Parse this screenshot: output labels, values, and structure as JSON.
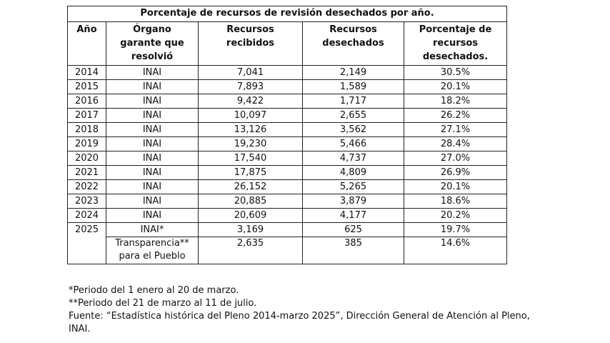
{
  "table": {
    "title": "Porcentaje de recursos de revisión desechados por año.",
    "headers": [
      [
        "Año"
      ],
      [
        "Órgano",
        "garante que",
        "resolvió"
      ],
      [
        "Recursos",
        "recibidos"
      ],
      [
        "Recursos",
        "desechados"
      ],
      [
        "Porcentaje de",
        "recursos",
        "desechados."
      ]
    ],
    "rows": [
      {
        "year": "2014",
        "organ": "INAI",
        "received": "7,041",
        "discarded": "2,149",
        "percent": "30.5%"
      },
      {
        "year": "2015",
        "organ": "INAI",
        "received": "7,893",
        "discarded": "1,589",
        "percent": "20.1%"
      },
      {
        "year": "2016",
        "organ": "INAI",
        "received": "9,422",
        "discarded": "1,717",
        "percent": "18.2%"
      },
      {
        "year": "2017",
        "organ": "INAI",
        "received": "10,097",
        "discarded": "2,655",
        "percent": "26.2%"
      },
      {
        "year": "2018",
        "organ": "INAI",
        "received": "13,126",
        "discarded": "3,562",
        "percent": "27.1%"
      },
      {
        "year": "2019",
        "organ": "INAI",
        "received": "19,230",
        "discarded": "5,466",
        "percent": "28.4%"
      },
      {
        "year": "2020",
        "organ": "INAI",
        "received": "17,540",
        "discarded": "4,737",
        "percent": "27.0%"
      },
      {
        "year": "2021",
        "organ": "INAI",
        "received": "17,875",
        "discarded": "4,809",
        "percent": "26.9%"
      },
      {
        "year": "2022",
        "organ": "INAI",
        "received": "26,152",
        "discarded": "5,265",
        "percent": "20.1%"
      },
      {
        "year": "2023",
        "organ": "INAI",
        "received": "20,885",
        "discarded": "3,879",
        "percent": "18.6%"
      },
      {
        "year": "2024",
        "organ": "INAI",
        "received": "20,609",
        "discarded": "4,177",
        "percent": "20.2%"
      }
    ],
    "row_2025a": {
      "year": "2025",
      "organ": "INAI*",
      "received": "3,169",
      "discarded": "625",
      "percent": "19.7%"
    },
    "row_2025b": {
      "organ_line1": "Transparencia**",
      "organ_line2": "para el Pueblo",
      "received": "2,635",
      "discarded": "385",
      "percent": "14.6%"
    }
  },
  "footnotes": {
    "note1": "*Periodo del 1 enero al 20 de marzo.",
    "note2": "**Periodo del 21 de marzo al 11 de julio.",
    "source_line1": "Fuente: “Estadística histórica del Pleno 2014-marzo 2025”, Dirección General de Atención al Pleno,",
    "source_line2": "INAI."
  }
}
